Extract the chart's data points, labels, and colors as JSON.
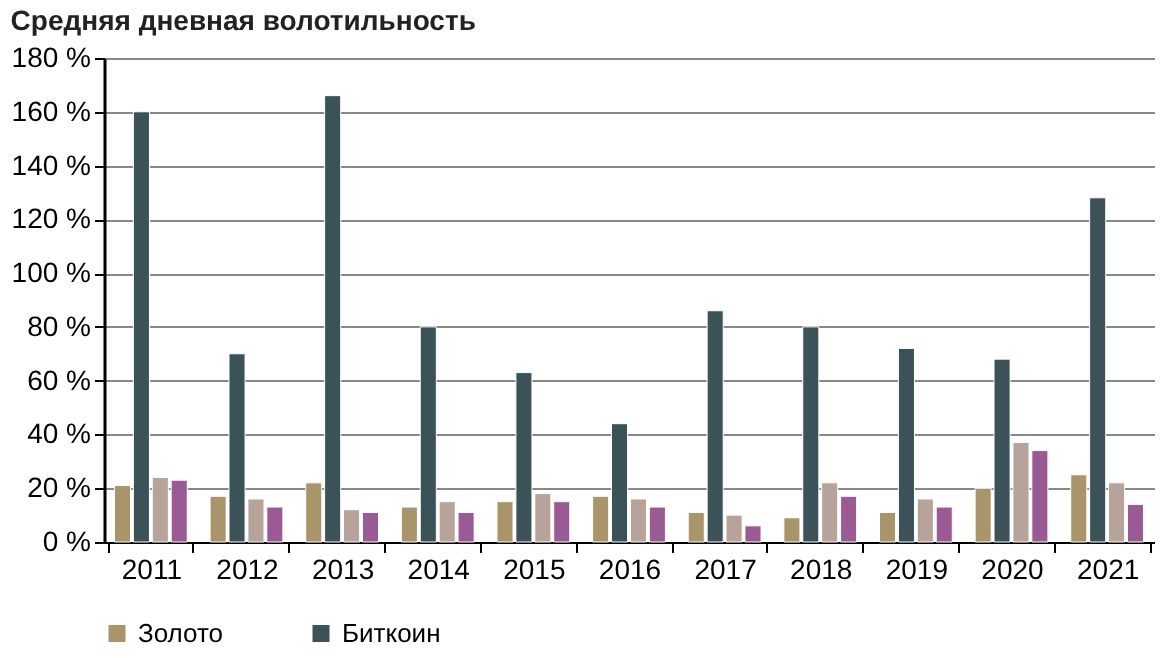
{
  "chart_data": {
    "type": "bar",
    "title": "Средняя дневная волотильность",
    "categories": [
      "2011",
      "2012",
      "2013",
      "2014",
      "2015",
      "2016",
      "2017",
      "2018",
      "2019",
      "2020",
      "2021"
    ],
    "series": [
      {
        "name": "Золото",
        "color": "#a8966a",
        "values": [
          21,
          17,
          22,
          13,
          15,
          17,
          11,
          9,
          11,
          20,
          25
        ]
      },
      {
        "name": "Биткоин",
        "color": "#3a5258",
        "values": [
          160,
          70,
          166,
          80,
          63,
          44,
          86,
          80,
          72,
          68,
          128
        ]
      },
      {
        "color": "#b8a39a",
        "values": [
          24,
          16,
          12,
          15,
          18,
          16,
          10,
          22,
          16,
          37,
          22
        ]
      },
      {
        "color": "#9a5a94",
        "values": [
          23,
          13,
          11,
          11,
          15,
          13,
          6,
          17,
          13,
          34,
          14
        ]
      }
    ],
    "ylim": [
      0,
      180
    ],
    "yticks": [
      {
        "value": 0,
        "label": "0 %"
      },
      {
        "value": 20,
        "label": "20 %"
      },
      {
        "value": 40,
        "label": "40 %"
      },
      {
        "value": 60,
        "label": "60 %"
      },
      {
        "value": 80,
        "label": "80 %"
      },
      {
        "value": 100,
        "label": "100 %"
      },
      {
        "value": 120,
        "label": "120 %"
      },
      {
        "value": 140,
        "label": "140 %"
      },
      {
        "value": 160,
        "label": "160 %"
      },
      {
        "value": 180,
        "label": "180 %"
      }
    ],
    "grid": "y",
    "legend": "bottom"
  }
}
